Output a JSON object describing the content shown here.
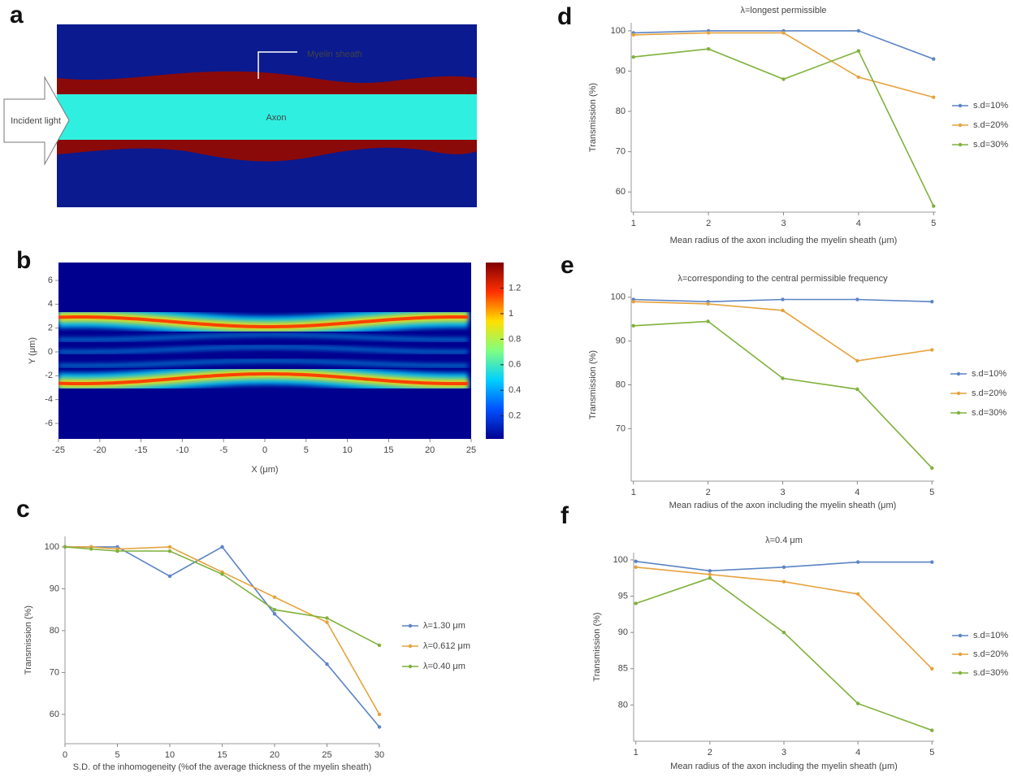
{
  "chart_data": [
    {
      "panel": "a",
      "type": "diagram",
      "labels": {
        "sheath": "Myelin sheath",
        "axon": "Axon",
        "light": "Incident light"
      }
    },
    {
      "panel": "b",
      "type": "heatmap",
      "x_label": "X (μm)",
      "y_label": "Y (μm)",
      "xlim": [
        -25,
        25
      ],
      "xticks": [
        -25,
        -20,
        -15,
        -10,
        -5,
        0,
        5,
        10,
        15,
        20,
        25
      ],
      "ylim": [
        -7.3,
        7.5
      ],
      "yticks": [
        -6,
        -4,
        -2,
        0,
        2,
        4,
        6
      ],
      "clim": [
        0.02,
        1.4
      ],
      "cticks": [
        0.2,
        0.4,
        0.6,
        0.8,
        1,
        1.2
      ],
      "colormap": [
        "#00008f",
        "#0050ff",
        "#00d0ff",
        "#80ff80",
        "#ffe000",
        "#ff3000",
        "#800000"
      ]
    },
    {
      "panel": "c",
      "type": "line",
      "x_label": "S.D. of the inhomogeneity (%of the average thickness of the myelin sheath)",
      "y_label": "Transmission (%)",
      "x": [
        0,
        2.5,
        5,
        10,
        15,
        20,
        25,
        30
      ],
      "xlim": [
        0,
        30
      ],
      "xticks": [
        0,
        5,
        10,
        15,
        20,
        25,
        30
      ],
      "ylim": [
        53,
        102.5
      ],
      "yticks": [
        60,
        70,
        80,
        90,
        100
      ],
      "legend": "right",
      "series": [
        {
          "name": "λ=1.30 μm",
          "color": "#5b84c4",
          "values": [
            100,
            100,
            100,
            93,
            100,
            84,
            72,
            57
          ]
        },
        {
          "name": "λ=0.612 μm",
          "color": "#e6a23c",
          "values": [
            100,
            100,
            99.5,
            100,
            94,
            88,
            82,
            60
          ]
        },
        {
          "name": "λ=0.40 μm",
          "color": "#7fb13a",
          "values": [
            100,
            99.5,
            99,
            99,
            93.5,
            85,
            83,
            76.5
          ]
        }
      ]
    },
    {
      "panel": "d",
      "type": "line",
      "title": "λ=longest permissible",
      "x_label": "Mean radius of the axon including the myelin sheath (μm)",
      "y_label": "Transmission (%)",
      "x": [
        1,
        2,
        3,
        4,
        5
      ],
      "xlim": [
        0.97,
        5.03
      ],
      "xticks": [
        1,
        2,
        3,
        4,
        5
      ],
      "ylim": [
        55,
        102
      ],
      "yticks": [
        60,
        70,
        80,
        90,
        100
      ],
      "legend": "right",
      "series": [
        {
          "name": "s.d=10%",
          "color": "#5b84c4",
          "values": [
            99.5,
            100,
            100,
            100,
            93
          ]
        },
        {
          "name": "s.d=20%",
          "color": "#e6a23c",
          "values": [
            99,
            99.5,
            99.5,
            88.5,
            83.5
          ]
        },
        {
          "name": "s.d=30%",
          "color": "#7fb13a",
          "values": [
            93.5,
            95.5,
            88,
            95,
            56.5
          ]
        }
      ]
    },
    {
      "panel": "e",
      "type": "line",
      "title": "λ=corresponding to the central permissible frequency",
      "x_label": "Mean radius of the axon including the myelin sheath (μm)",
      "y_label": "Transmission (%)",
      "x": [
        1,
        2,
        3,
        4,
        5
      ],
      "xlim": [
        0.97,
        5.03
      ],
      "xticks": [
        1,
        2,
        3,
        4,
        5
      ],
      "ylim": [
        58,
        102
      ],
      "yticks": [
        70,
        80,
        90,
        100
      ],
      "legend": "right",
      "series": [
        {
          "name": "s.d=10%",
          "color": "#5b84c4",
          "values": [
            99.5,
            99,
            99.5,
            99.5,
            99
          ]
        },
        {
          "name": "s.d=20%",
          "color": "#e6a23c",
          "values": [
            99,
            98.5,
            97,
            85.5,
            88
          ]
        },
        {
          "name": "s.d=30%",
          "color": "#7fb13a",
          "values": [
            93.5,
            94.5,
            81.5,
            79,
            61
          ]
        }
      ]
    },
    {
      "panel": "f",
      "type": "line",
      "title": "λ=0.4 μm",
      "x_label": "Mean radius of the axon including the myelin sheath (μm)",
      "y_label": "Transmission (%)",
      "x": [
        1,
        2,
        3,
        4,
        5
      ],
      "xlim": [
        0.97,
        5.03
      ],
      "xticks": [
        1,
        2,
        3,
        4,
        5
      ],
      "ylim": [
        75,
        101
      ],
      "yticks": [
        80,
        85,
        90,
        95,
        100
      ],
      "legend": "right",
      "series": [
        {
          "name": "s.d=10%",
          "color": "#5b84c4",
          "values": [
            99.8,
            98.5,
            99,
            99.7,
            99.7
          ]
        },
        {
          "name": "s.d=20%",
          "color": "#e6a23c",
          "values": [
            99,
            98,
            97,
            95.3,
            85
          ]
        },
        {
          "name": "s.d=30%",
          "color": "#7fb13a",
          "values": [
            94,
            97.5,
            90,
            80.2,
            76.5
          ]
        }
      ]
    }
  ]
}
